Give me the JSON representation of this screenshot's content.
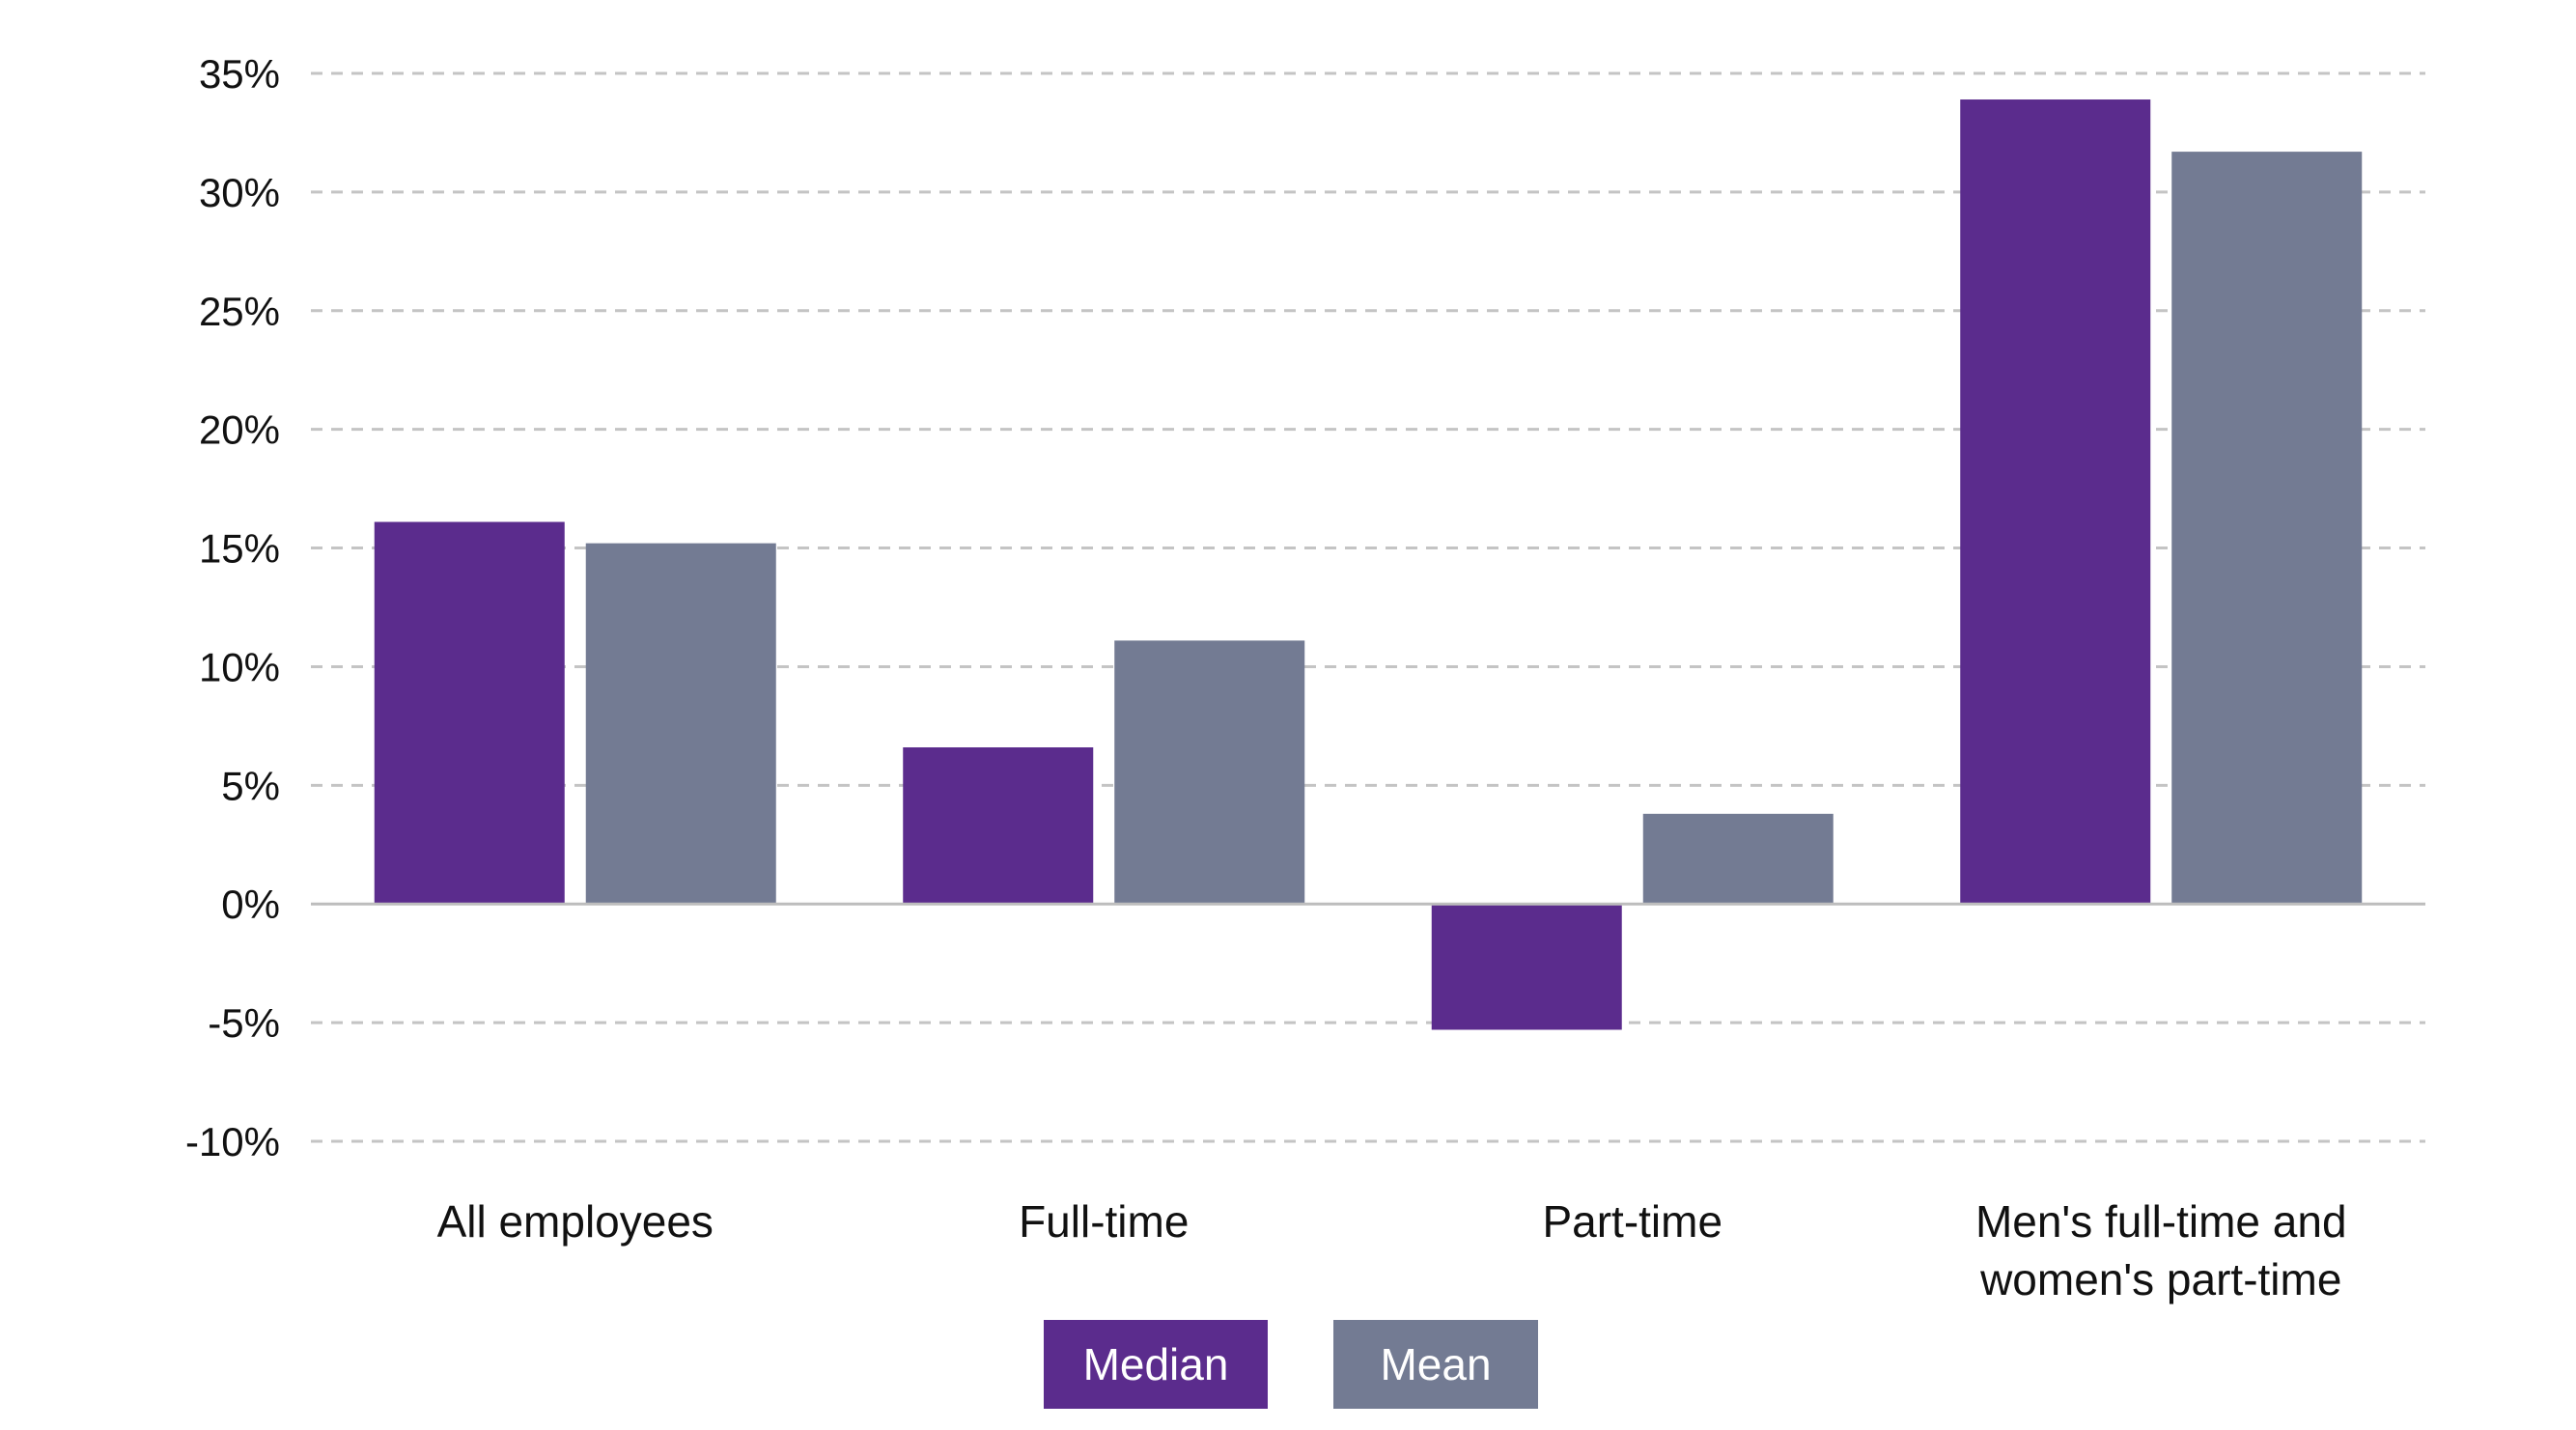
{
  "chart_data": {
    "type": "bar",
    "categories": [
      [
        "All employees"
      ],
      [
        "Full-time"
      ],
      [
        "Part-time"
      ],
      [
        "Men's full-time and",
        "women's part-time"
      ]
    ],
    "series": [
      {
        "name": "Median",
        "color": "#5b2c8d",
        "values": [
          16.1,
          6.6,
          -5.3,
          33.9
        ]
      },
      {
        "name": "Mean",
        "color": "#737b93",
        "values": [
          15.2,
          11.1,
          3.8,
          31.7
        ]
      }
    ],
    "ylim": [
      -10,
      35
    ],
    "yticks": [
      35,
      30,
      25,
      20,
      15,
      10,
      5,
      0,
      -5,
      -10
    ],
    "ytick_labels": [
      "35%",
      "30%",
      "25%",
      "20%",
      "15%",
      "10%",
      "5%",
      "0%",
      "-5%",
      "-10%"
    ],
    "grid": "dashed-horizontal",
    "legend_position": "bottom-center",
    "title": "",
    "xlabel": "",
    "ylabel": ""
  }
}
